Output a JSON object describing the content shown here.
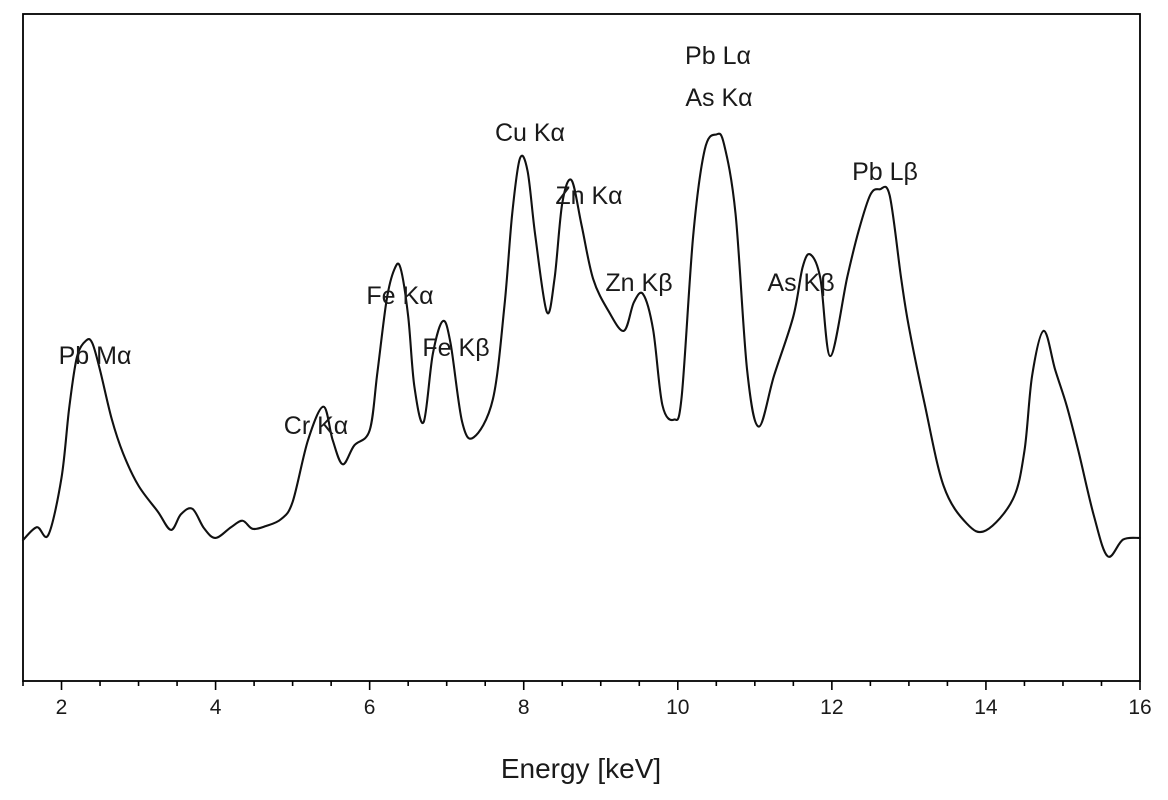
{
  "chart_data": {
    "type": "line",
    "title": "",
    "xlabel": "Energy [keV]",
    "ylabel": "",
    "xlim": [
      1.5,
      16
    ],
    "ylim": [
      0,
      100
    ],
    "x_ticks": [
      2,
      4,
      6,
      8,
      10,
      12,
      14,
      16
    ],
    "x_tick_labels": [
      "2",
      "4",
      "6",
      "8",
      "10",
      "12",
      "14",
      "16"
    ],
    "x_minor_step": 0.5,
    "line_color": "#111111",
    "series": [
      {
        "name": "spectrum",
        "x": [
          1.5,
          1.68,
          1.83,
          2.0,
          2.1,
          2.2,
          2.32,
          2.4,
          2.5,
          2.65,
          2.8,
          3.0,
          3.25,
          3.42,
          3.55,
          3.7,
          3.85,
          4.0,
          4.2,
          4.35,
          4.48,
          4.65,
          4.85,
          5.0,
          5.2,
          5.4,
          5.52,
          5.65,
          5.8,
          6.0,
          6.1,
          6.22,
          6.32,
          6.4,
          6.5,
          6.58,
          6.7,
          6.82,
          6.95,
          7.05,
          7.2,
          7.35,
          7.6,
          7.75,
          7.85,
          7.95,
          8.05,
          8.15,
          8.3,
          8.4,
          8.5,
          8.62,
          8.75,
          8.9,
          9.1,
          9.3,
          9.43,
          9.55,
          9.68,
          9.8,
          9.95,
          10.05,
          10.2,
          10.35,
          10.5,
          10.6,
          10.75,
          10.9,
          11.05,
          11.25,
          11.5,
          11.62,
          11.72,
          11.85,
          11.98,
          12.2,
          12.35,
          12.5,
          12.62,
          12.75,
          12.9,
          13.0,
          13.2,
          13.45,
          13.75,
          14.0,
          14.35,
          14.5,
          14.6,
          14.75,
          14.9,
          15.05,
          15.2,
          15.4,
          15.58,
          15.78,
          16.0
        ],
        "y": [
          23.4,
          25.8,
          24.4,
          35,
          48,
          57.4,
          60.5,
          60,
          55,
          46,
          39.5,
          33.5,
          28.7,
          25.3,
          28.2,
          29.2,
          25.6,
          23.8,
          25.8,
          27,
          25.5,
          26,
          27.3,
          30.5,
          42,
          48.2,
          42,
          37.5,
          41,
          43.8,
          54.5,
          68,
          73.7,
          74,
          65,
          52,
          45.3,
          58,
          64.1,
          60,
          45.4,
          42.5,
          49.6,
          67,
          84,
          94.3,
          92,
          80,
          65.8,
          72,
          86,
          90.3,
          82,
          72,
          66,
          62.3,
          67.6,
          69.1,
          62.5,
          48.5,
          45.8,
          50,
          80,
          96,
          98.8,
          97,
          84,
          55,
          44.5,
          54,
          65,
          74.1,
          76.5,
          72.1,
          57.6,
          72.3,
          81,
          87.6,
          88.6,
          87.5,
          72,
          63,
          49,
          33.5,
          26.5,
          25.2,
          31,
          40,
          54,
          62.3,
          55,
          48.3,
          40,
          28,
          20.4,
          23.5,
          23.8
        ]
      }
    ],
    "annotations": [
      {
        "text": "Pb Mα",
        "x": 2.4,
        "y": 60.5
      },
      {
        "text": "Cr Kα",
        "x": 5.4,
        "y": 48.2
      },
      {
        "text": "Fe Kα",
        "x": 6.4,
        "y": 74
      },
      {
        "text": "Fe Kβ",
        "x": 6.95,
        "y": 64.1
      },
      {
        "text": "Cu Kα",
        "x": 7.95,
        "y": 94.3
      },
      {
        "text": "Zn Kα",
        "x": 8.62,
        "y": 90.3
      },
      {
        "text": "Zn Kβ",
        "x": 9.55,
        "y": 69.1
      },
      {
        "text": "Pb Lα",
        "x": 10.5,
        "y": 98.8
      },
      {
        "text": "As Kα",
        "x": 10.5,
        "y": 98.8
      },
      {
        "text": "As Kβ",
        "x": 11.72,
        "y": 76.5
      },
      {
        "text": "Pb Lβ",
        "x": 12.62,
        "y": 88.6
      }
    ]
  }
}
